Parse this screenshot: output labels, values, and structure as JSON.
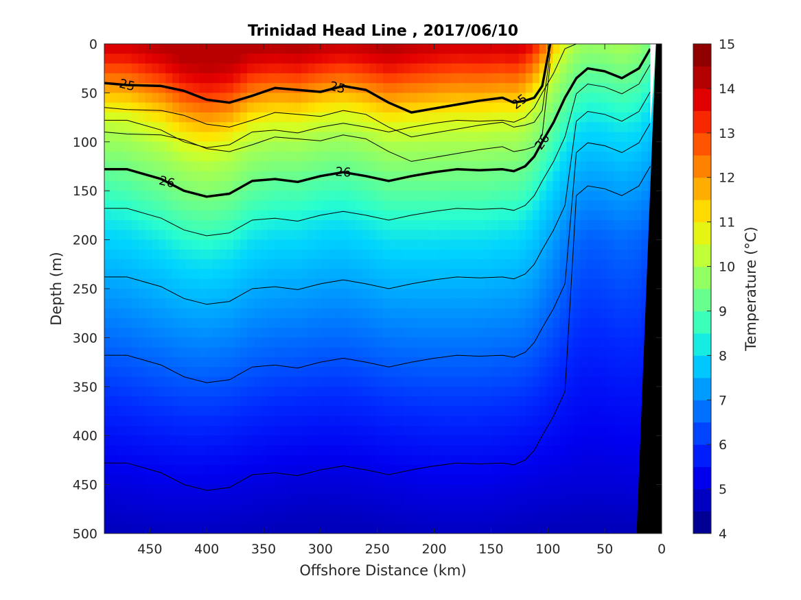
{
  "chart_data": {
    "type": "heatmap",
    "title": "Trinidad Head Line , 2017/06/10",
    "xlabel": "Offshore Distance (km)",
    "ylabel": "Depth (m)",
    "colorbar_label": "Temperature (°C)",
    "x_reversed": true,
    "xlim": [
      490,
      0
    ],
    "ylim": [
      500,
      0
    ],
    "xticks": [
      450,
      400,
      350,
      300,
      250,
      200,
      150,
      100,
      50,
      0
    ],
    "yticks": [
      0,
      50,
      100,
      150,
      200,
      250,
      300,
      350,
      400,
      450,
      500
    ],
    "colorbar_ticks": [
      4,
      5,
      6,
      7,
      8,
      9,
      10,
      11,
      12,
      13,
      14,
      15
    ],
    "colorbar_range": [
      4,
      15
    ],
    "colorbar_levels": [
      4,
      4.5,
      5,
      5.5,
      6,
      6.5,
      7,
      7.5,
      8,
      8.5,
      9,
      9.5,
      10,
      10.5,
      11,
      11.5,
      12,
      12.5,
      13,
      13.5,
      14,
      14.5,
      15
    ],
    "colormap_colors": [
      "#00007f",
      "#0000b7",
      "#0000f0",
      "#0029ff",
      "#0062ff",
      "#009aff",
      "#00d3ff",
      "#29ffce",
      "#62ff94",
      "#9aff5d",
      "#d3ff24",
      "#ffe500",
      "#ffac00",
      "#ff7300",
      "#ff3900",
      "#e40000",
      "#aa0000",
      "#800000"
    ],
    "temperature_profile": {
      "depth": [
        0,
        20,
        40,
        60,
        80,
        100,
        120,
        140,
        160,
        180,
        200,
        250,
        300,
        350,
        400,
        450,
        500
      ],
      "temp": [
        14.2,
        13.5,
        12.5,
        11.5,
        10.6,
        10.0,
        9.6,
        9.2,
        8.8,
        8.4,
        8.0,
        7.4,
        6.8,
        6.2,
        5.6,
        5.1,
        4.7
      ]
    },
    "isopycnals": [
      {
        "label": "25",
        "x": [
          490,
          470,
          440,
          420,
          400,
          380,
          360,
          340,
          320,
          300,
          280,
          260,
          240,
          220,
          200,
          180,
          160,
          140,
          130,
          120,
          112,
          105,
          98
        ],
        "depth": [
          40,
          42,
          43,
          48,
          57,
          60,
          53,
          45,
          47,
          49,
          43,
          47,
          60,
          70,
          66,
          62,
          58,
          55,
          60,
          58,
          55,
          43,
          0
        ]
      },
      {
        "label": "26",
        "x": [
          490,
          470,
          440,
          420,
          400,
          380,
          360,
          340,
          320,
          300,
          280,
          260,
          240,
          220,
          200,
          180,
          160,
          140,
          130,
          120,
          112,
          105,
          95,
          85,
          75,
          65,
          50,
          35,
          20,
          10
        ],
        "depth": [
          128,
          128,
          138,
          150,
          156,
          153,
          140,
          138,
          141,
          135,
          131,
          135,
          140,
          135,
          131,
          128,
          129,
          128,
          130,
          125,
          115,
          100,
          80,
          55,
          35,
          25,
          28,
          35,
          25,
          5
        ]
      }
    ],
    "contour_labels": [
      "25",
      "25",
      "25",
      "26",
      "26",
      "26"
    ],
    "bathymetry_color": "#000000"
  }
}
